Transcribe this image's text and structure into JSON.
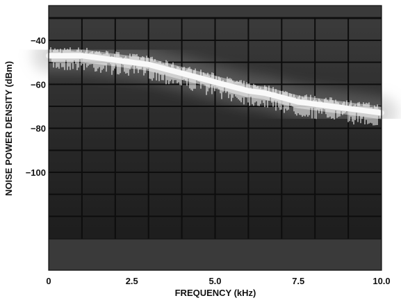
{
  "chart_data": {
    "type": "line",
    "title": "",
    "xlabel": "FREQUENCY (kHz)",
    "ylabel": "NOISE POWER DENSITY (dBm)",
    "xlim": [
      0,
      10
    ],
    "ylim": [
      -135,
      -30
    ],
    "x_ticks": [
      0,
      2.5,
      5.0,
      7.5,
      10.0
    ],
    "x_tick_labels": [
      "0",
      "2.5",
      "5.0",
      "7.5",
      "10.0"
    ],
    "y_ticks": [
      -40,
      -60,
      -80,
      -100
    ],
    "y_tick_labels": [
      "−40",
      "−60",
      "−80",
      "−100"
    ],
    "grid": true,
    "legend": "none",
    "series": [
      {
        "x": [
          0,
          0.5,
          1.0,
          1.5,
          2.0,
          2.5,
          3.0,
          3.5,
          4.0,
          4.5,
          5.0,
          5.5,
          6.0,
          6.5,
          7.0,
          7.5,
          8.0,
          8.5,
          9.0,
          9.5,
          10.0
        ],
        "values": [
          -47,
          -47,
          -47,
          -48,
          -49,
          -50,
          -51,
          -53,
          -55,
          -57,
          -59,
          -61,
          -63,
          -64,
          -66,
          -68,
          -69,
          -70,
          -71,
          -72,
          -73
        ]
      }
    ],
    "colors": {
      "trace": "#f2f2f2",
      "screen_background": "#1e1e1e",
      "grid": "#0d0d0d",
      "band": "#3a3a3a"
    }
  }
}
